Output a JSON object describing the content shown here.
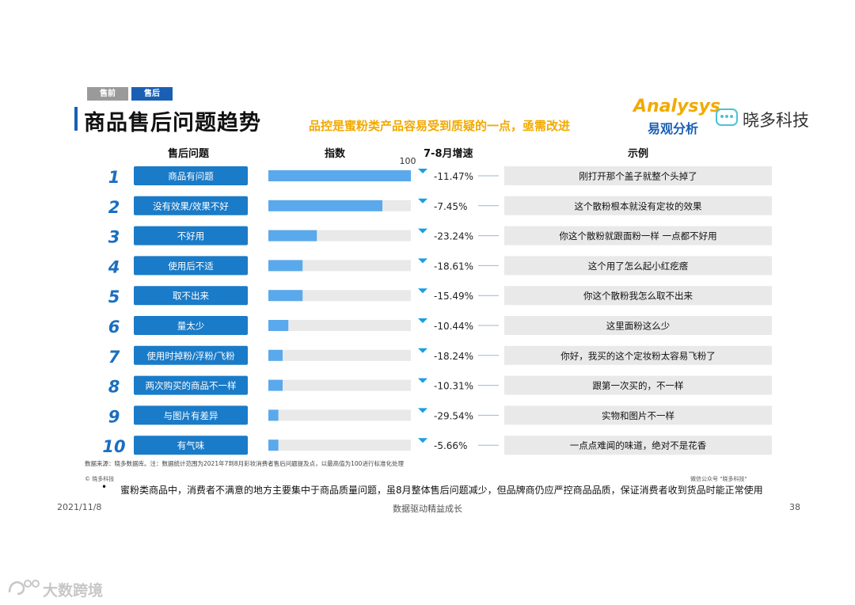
{
  "tabs": {
    "pre": "售前",
    "post": "售后"
  },
  "title": "商品售后问题趋势",
  "callout": "品控是蜜粉类产品容易受到质疑的一点，亟需改进",
  "brands": {
    "analysys": "Analysys",
    "analysys_cn": "易观分析",
    "xiaoduo": "晓多科技",
    "xiaoduo_icon": "chat-bubble-icon"
  },
  "headers": {
    "problem": "售后问题",
    "index": "指数",
    "growth": "7-8月增速",
    "example": "示例"
  },
  "colors": {
    "accent": "#1a5fb4",
    "bar": "#5aa9ec",
    "highlight": "#f2a900",
    "track": "#e9e9e9",
    "label_bg": "#1a7bc8"
  },
  "chart_data": {
    "type": "bar",
    "orientation": "horizontal",
    "xlim": [
      0,
      100
    ],
    "max_tick_label": "100",
    "categories": [
      "商品有问题",
      "没有效果/效果不好",
      "不好用",
      "使用后不适",
      "取不出来",
      "量太少",
      "使用时掉粉/浮粉/飞粉",
      "两次购买的商品不一样",
      "与图片有差异",
      "有气味"
    ],
    "ranks": [
      "1",
      "2",
      "3",
      "4",
      "5",
      "6",
      "7",
      "8",
      "9",
      "10"
    ],
    "values": [
      100,
      80,
      34,
      24,
      24,
      14,
      10,
      10,
      7,
      7
    ],
    "growth": [
      "-11.47%",
      "-7.45%",
      "-23.24%",
      "-18.61%",
      "-15.49%",
      "-10.44%",
      "-18.24%",
      "-10.31%",
      "-29.54%",
      "-5.66%"
    ],
    "examples": [
      "刚打开那个盖子就整个头掉了",
      "这个散粉根本就没有定妆的效果",
      "你这个散粉就跟面粉一样 一点都不好用",
      "这个用了怎么起小红疙瘩",
      "你这个散粉我怎么取不出来",
      "这里面粉这么少",
      "你好，我买的这个定妆粉太容易飞粉了",
      "跟第一次买的，不一样",
      "实物和图片不一样",
      "一点点难闻的味道，绝对不是花香"
    ]
  },
  "footer": {
    "source": "数据来源：晓多数据库。注：数据统计范围为2021年7到8月彩妆消费者售后问题提及点，以最高值为100进行标准化处理",
    "copyright": "© 晓多科技",
    "wechat": "微信公众号 \"晓多科技\"",
    "bullet_mark": "•",
    "bullet": "蜜粉类商品中，消费者不满意的地方主要集中于商品质量问题，虽8月整体售后问题减少，但品牌商仍应严控商品品质，保证消费者收到货品时能正常使用",
    "date": "2021/11/8",
    "center": "数据驱动精益成长",
    "page": "38"
  },
  "watermark": {
    "text": "大数跨境",
    "icon": "watermark-logo-icon"
  }
}
